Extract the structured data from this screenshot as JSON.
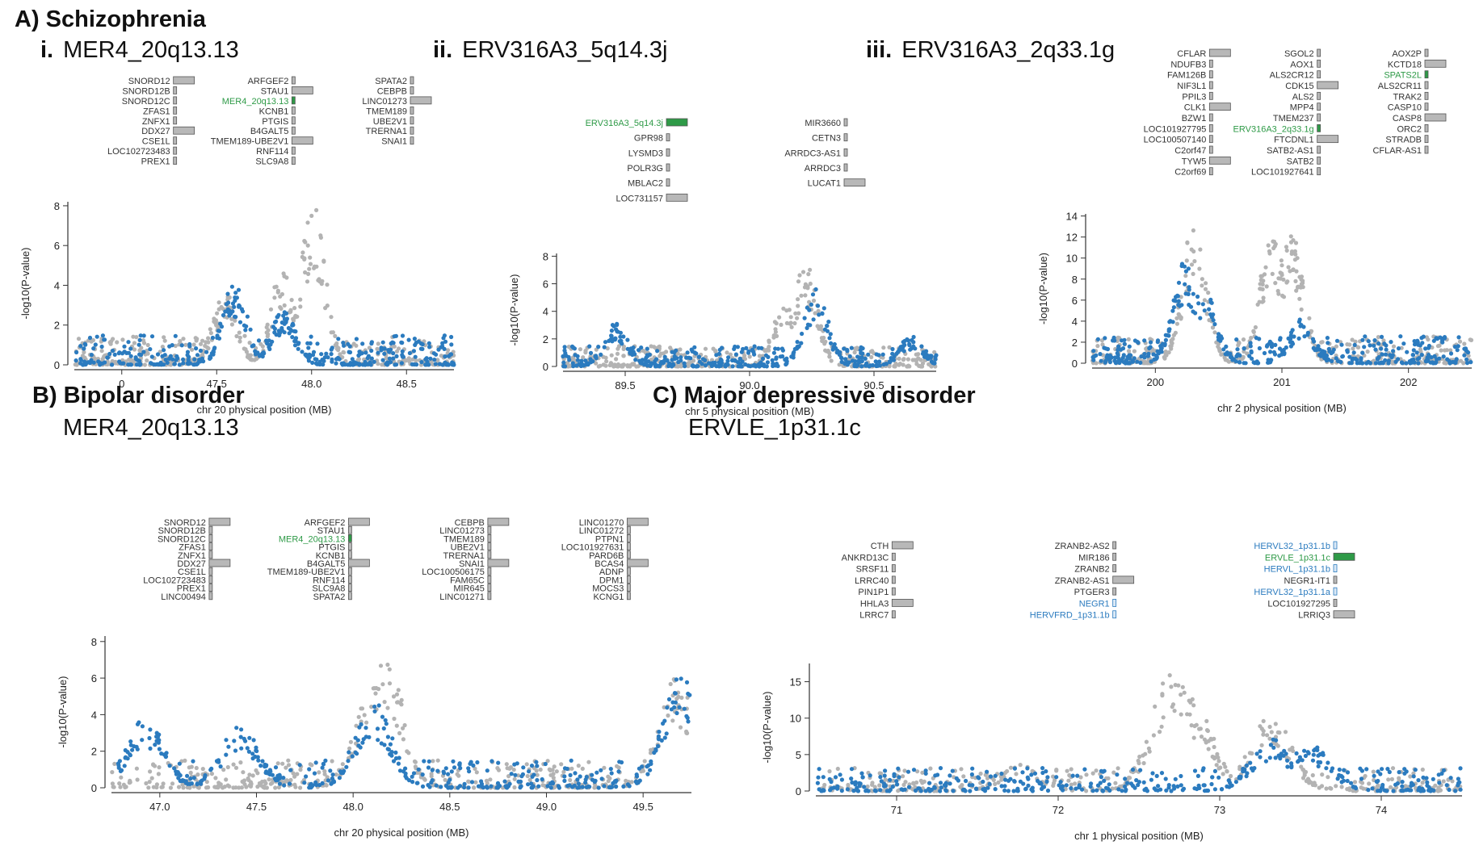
{
  "sections": {
    "A": "A) Schizophrenia",
    "B": "B) Bipolar disorder",
    "C": "C) Major depressive disorder"
  },
  "colors": {
    "blue": "#2b7bbf",
    "gray": "#b3b3b3",
    "gene": "#b8b8b8",
    "herv": "#2e9a47",
    "herv_blue": "#2b7bbf"
  },
  "panels": {
    "ai": {
      "label": "i.",
      "name": "MER4_20q13.13"
    },
    "aii": {
      "label": "ii.",
      "name": "ERV316A3_5q14.3j"
    },
    "aiii": {
      "label": "iii.",
      "name": "ERV316A3_2q33.1g"
    },
    "b": {
      "label": "",
      "name": "MER4_20q13.13"
    },
    "c": {
      "label": "",
      "name": "ERVLE_1p31.1c"
    }
  },
  "chart_data": [
    {
      "id": "ai",
      "type": "scatter",
      "xlabel": "chr 20 physical position (MB)",
      "ylabel": "-log10(P-value)",
      "xticks": [
        "0",
        "47.5",
        "48.0",
        "48.5"
      ],
      "yticks": [
        0,
        2,
        4,
        6,
        8
      ],
      "xlim": [
        46.88,
        48.82
      ],
      "ylim": [
        0,
        8.2
      ],
      "series": [
        {
          "color": "gray",
          "peaks": [
            [
              47.65,
              3.8
            ],
            [
              48.1,
              8.1
            ],
            [
              47.95,
              5.2
            ]
          ]
        },
        {
          "color": "blue",
          "peaks": [
            [
              47.7,
              4.3
            ],
            [
              47.95,
              2.8
            ]
          ]
        }
      ],
      "genes": [
        [
          "SNORD12",
          "l"
        ],
        [
          "SNORD12B",
          "l"
        ],
        [
          "SNORD12C",
          "l"
        ],
        [
          "ZFAS1",
          "l"
        ],
        [
          "ZNFX1",
          "l"
        ],
        [
          "DDX27",
          "l"
        ],
        [
          "CSE1L",
          "l"
        ],
        [
          "LOC102723483",
          "l"
        ],
        [
          "PREX1",
          "l"
        ],
        [
          "ARFGEF2",
          "l"
        ],
        [
          "STAU1",
          "l"
        ],
        [
          "MER4_20q13.13",
          "herv"
        ],
        [
          "KCNB1",
          "l"
        ],
        [
          "PTGIS",
          "l"
        ],
        [
          "B4GALT5",
          "l"
        ],
        [
          "TMEM189-UBE2V1",
          "l"
        ],
        [
          "RNF114",
          "l"
        ],
        [
          "SLC9A8",
          "l"
        ],
        [
          "SPATA2",
          "l"
        ],
        [
          "CEBPB",
          "l"
        ],
        [
          "LINC01273",
          "l"
        ],
        [
          "TMEM189",
          "l"
        ],
        [
          "UBE2V1",
          "l"
        ],
        [
          "TRERNA1",
          "l"
        ],
        [
          "SNAI1",
          "l"
        ]
      ]
    },
    {
      "id": "aii",
      "type": "scatter",
      "xlabel": "chr 5 physical position (MB)",
      "ylabel": "-log10(P-value)",
      "xticks": [
        "89.5",
        "90.0",
        "90.5"
      ],
      "yticks": [
        0,
        2,
        4,
        6,
        8
      ],
      "xlim": [
        89.05,
        90.82
      ],
      "ylim": [
        0,
        8.2
      ],
      "series": [
        {
          "color": "gray",
          "peaks": [
            [
              90.2,
              7.9
            ],
            [
              90.1,
              4.5
            ]
          ]
        },
        {
          "color": "blue",
          "peaks": [
            [
              90.25,
              6.2
            ],
            [
              89.3,
              3.2
            ],
            [
              90.7,
              2.2
            ]
          ]
        }
      ],
      "genes": [
        [
          "ERV316A3_5q14.3j",
          "herv"
        ],
        [
          "GPR98",
          "l"
        ],
        [
          "LYSMD3",
          "l"
        ],
        [
          "POLR3G",
          "l"
        ],
        [
          "MBLAC2",
          "l"
        ],
        [
          "LOC731157",
          "l"
        ],
        [
          "MIR3660",
          "l"
        ],
        [
          "CETN3",
          "l"
        ],
        [
          "ARRDC3-AS1",
          "l"
        ],
        [
          "ARRDC3",
          "l"
        ],
        [
          "LUCAT1",
          "l"
        ]
      ]
    },
    {
      "id": "aiii",
      "type": "scatter",
      "xlabel": "chr 2 physical position (MB)",
      "ylabel": "-log10(P-value)",
      "xticks": [
        "200",
        "201",
        "202"
      ],
      "yticks": [
        0,
        2,
        4,
        6,
        8,
        10,
        12,
        14
      ],
      "xlim": [
        199.05,
        202.95
      ],
      "ylim": [
        0,
        14.2
      ],
      "series": [
        {
          "color": "gray",
          "peaks": [
            [
              200.1,
              13.8
            ],
            [
              200.9,
              13.2
            ],
            [
              201.1,
              12.4
            ]
          ]
        },
        {
          "color": "blue",
          "peaks": [
            [
              200.0,
              10.2
            ],
            [
              200.2,
              7.5
            ],
            [
              201.2,
              4.2
            ]
          ]
        }
      ],
      "genes": [
        [
          "CFLAR",
          "l"
        ],
        [
          "NDUFB3",
          "l"
        ],
        [
          "FAM126B",
          "l"
        ],
        [
          "NIF3L1",
          "l"
        ],
        [
          "PPIL3",
          "l"
        ],
        [
          "CLK1",
          "l"
        ],
        [
          "BZW1",
          "l"
        ],
        [
          "LOC101927795",
          "l"
        ],
        [
          "LOC100507140",
          "l"
        ],
        [
          "C2orf47",
          "l"
        ],
        [
          "TYW5",
          "l"
        ],
        [
          "C2orf69",
          "l"
        ],
        [
          "SGOL2",
          "l"
        ],
        [
          "AOX1",
          "l"
        ],
        [
          "ALS2CR12",
          "l"
        ],
        [
          "CDK15",
          "l"
        ],
        [
          "ALS2",
          "l"
        ],
        [
          "MPP4",
          "l"
        ],
        [
          "TMEM237",
          "l"
        ],
        [
          "ERV316A3_2q33.1g",
          "herv"
        ],
        [
          "FTCDNL1",
          "l"
        ],
        [
          "SATB2-AS1",
          "l"
        ],
        [
          "SATB2",
          "l"
        ],
        [
          "LOC101927641",
          "l"
        ],
        [
          "AOX2P",
          "l"
        ],
        [
          "KCTD18",
          "l"
        ],
        [
          "SPATS2L",
          "herv"
        ],
        [
          "ALS2CR11",
          "l"
        ],
        [
          "TRAK2",
          "l"
        ],
        [
          "CASP10",
          "l"
        ],
        [
          "CASP8",
          "l"
        ],
        [
          "ORC2",
          "l"
        ],
        [
          "STRADB",
          "l"
        ],
        [
          "CFLAR-AS1",
          "l"
        ]
      ]
    },
    {
      "id": "b",
      "type": "scatter",
      "xlabel": "chr 20 physical position (MB)",
      "ylabel": "-log10(P-value)",
      "xticks": [
        "47.0",
        "47.5",
        "48.0",
        "48.5",
        "49.0",
        "49.5"
      ],
      "yticks": [
        0,
        2,
        4,
        6,
        8
      ],
      "xlim": [
        46.62,
        49.68
      ],
      "ylim": [
        0,
        8.3
      ],
      "series": [
        {
          "color": "gray",
          "peaks": [
            [
              48.05,
              8.2
            ],
            [
              48.0,
              5.5
            ],
            [
              49.6,
              6.0
            ]
          ]
        },
        {
          "color": "blue",
          "peaks": [
            [
              48.0,
              4.8
            ],
            [
              46.8,
              4.0
            ],
            [
              49.62,
              6.2
            ],
            [
              47.3,
              3.6
            ]
          ]
        }
      ],
      "genes": [
        [
          "SNORD12",
          "l"
        ],
        [
          "SNORD12B",
          "l"
        ],
        [
          "SNORD12C",
          "l"
        ],
        [
          "ZFAS1",
          "l"
        ],
        [
          "ZNFX1",
          "l"
        ],
        [
          "DDX27",
          "l"
        ],
        [
          "CSE1L",
          "l"
        ],
        [
          "LOC102723483",
          "l"
        ],
        [
          "PREX1",
          "l"
        ],
        [
          "LINC00494",
          "l"
        ],
        [
          "ARFGEF2",
          "l"
        ],
        [
          "STAU1",
          "l"
        ],
        [
          "MER4_20q13.13",
          "herv"
        ],
        [
          "PTGIS",
          "l"
        ],
        [
          "KCNB1",
          "l"
        ],
        [
          "B4GALT5",
          "l"
        ],
        [
          "TMEM189-UBE2V1",
          "l"
        ],
        [
          "RNF114",
          "l"
        ],
        [
          "SLC9A8",
          "l"
        ],
        [
          "SPATA2",
          "l"
        ],
        [
          "CEBPB",
          "l"
        ],
        [
          "LINC01273",
          "l"
        ],
        [
          "TMEM189",
          "l"
        ],
        [
          "UBE2V1",
          "l"
        ],
        [
          "TRERNA1",
          "l"
        ],
        [
          "SNAI1",
          "l"
        ],
        [
          "LOC100506175",
          "l"
        ],
        [
          "FAM65C",
          "l"
        ],
        [
          "MIR645",
          "l"
        ],
        [
          "LINC01271",
          "l"
        ],
        [
          "LINC01270",
          "l"
        ],
        [
          "LINC01272",
          "l"
        ],
        [
          "PTPN1",
          "l"
        ],
        [
          "LOC101927631",
          "l"
        ],
        [
          "PARD6B",
          "l"
        ],
        [
          "BCAS4",
          "l"
        ],
        [
          "ADNP",
          "l"
        ],
        [
          "DPM1",
          "l"
        ],
        [
          "MOCS3",
          "l"
        ],
        [
          "KCNG1",
          "l"
        ]
      ]
    },
    {
      "id": "c",
      "type": "scatter",
      "xlabel": "chr 1 physical position (MB)",
      "ylabel": "-log10(P-value)",
      "xticks": [
        "71",
        "72",
        "73",
        "74"
      ],
      "yticks": [
        0,
        5,
        10,
        15
      ],
      "xlim": [
        70.05,
        74.95
      ],
      "ylim": [
        0,
        17.5
      ],
      "series": [
        {
          "color": "gray",
          "peaks": [
            [
              72.75,
              17.0
            ],
            [
              72.9,
              13.0
            ],
            [
              73.5,
              10.5
            ],
            [
              71.6,
              3.6
            ]
          ]
        },
        {
          "color": "blue",
          "peaks": [
            [
              73.5,
              7.2
            ],
            [
              73.8,
              6.5
            ]
          ]
        }
      ],
      "genes": [
        [
          "CTH",
          "l"
        ],
        [
          "ANKRD13C",
          "l"
        ],
        [
          "SRSF11",
          "l"
        ],
        [
          "LRRC40",
          "l"
        ],
        [
          "PIN1P1",
          "l"
        ],
        [
          "HHLA3",
          "l"
        ],
        [
          "LRRC7",
          "l"
        ],
        [
          "ZRANB2-AS2",
          "l"
        ],
        [
          "MIR186",
          "l"
        ],
        [
          "ZRANB2",
          "l"
        ],
        [
          "ZRANB2-AS1",
          "l"
        ],
        [
          "PTGER3",
          "l"
        ],
        [
          "NEGR1",
          "hblue"
        ],
        [
          "HERVFRD_1p31.1b",
          "hblue"
        ],
        [
          "HERVL32_1p31.1b",
          "hblue"
        ],
        [
          "ERVLE_1p31.1c",
          "herv"
        ],
        [
          "HERVL_1p31.1b",
          "hblue"
        ],
        [
          "NEGR1-IT1",
          "l"
        ],
        [
          "HERVL32_1p31.1a",
          "hblue"
        ],
        [
          "LOC101927295",
          "l"
        ],
        [
          "LRRIQ3",
          "l"
        ]
      ]
    }
  ]
}
